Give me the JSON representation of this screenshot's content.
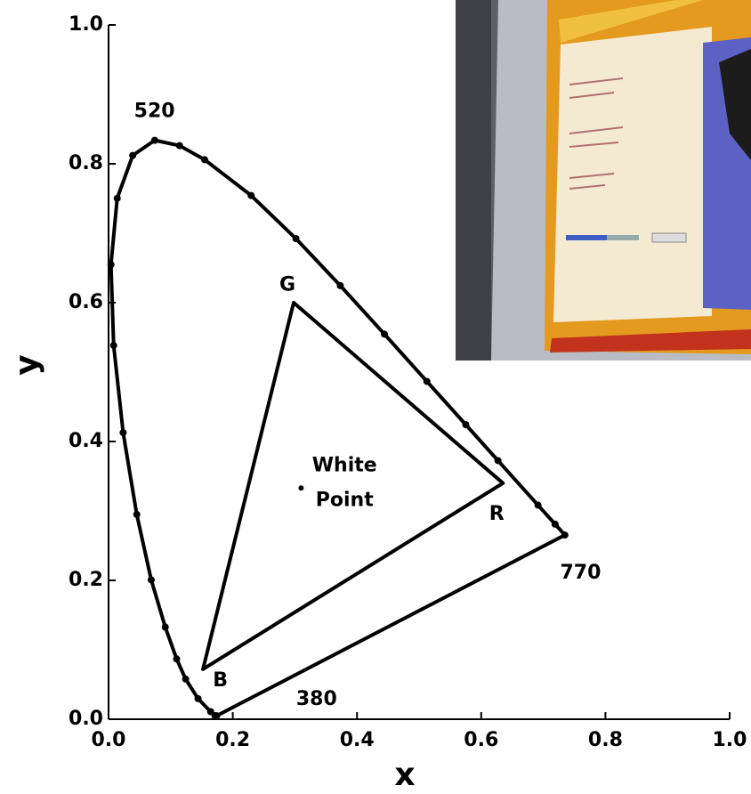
{
  "chart_data": {
    "type": "line",
    "xlabel": "x",
    "ylabel": "y",
    "xlim": [
      0,
      1.0
    ],
    "ylim": [
      0,
      1.0
    ],
    "xticks": [
      {
        "value": 0,
        "label": "0.0"
      },
      {
        "value": 0.2,
        "label": "0.2"
      },
      {
        "value": 0.4,
        "label": "0.4"
      },
      {
        "value": 0.6,
        "label": "0.6"
      },
      {
        "value": 0.8,
        "label": "0.8"
      },
      {
        "value": 1.0,
        "label": "1.0"
      }
    ],
    "yticks": [
      {
        "value": 0,
        "label": "0.0"
      },
      {
        "value": 0.2,
        "label": "0.2"
      },
      {
        "value": 0.4,
        "label": "0.4"
      },
      {
        "value": 0.6,
        "label": "0.6"
      },
      {
        "value": 0.8,
        "label": "0.8"
      },
      {
        "value": 1.0,
        "label": "1.0"
      }
    ],
    "color": "#000000",
    "locus": {
      "x": [
        0.1741,
        0.1714,
        0.1644,
        0.144,
        0.1241,
        0.1096,
        0.0913,
        0.0687,
        0.0454,
        0.0235,
        0.0082,
        0.0039,
        0.0139,
        0.0389,
        0.0743,
        0.1142,
        0.1547,
        0.2296,
        0.3016,
        0.3731,
        0.4441,
        0.5125,
        0.5752,
        0.627,
        0.6915,
        0.719,
        0.7347
      ],
      "y": [
        0.005,
        0.0051,
        0.0109,
        0.0297,
        0.0578,
        0.0868,
        0.1327,
        0.2007,
        0.295,
        0.4127,
        0.5384,
        0.6548,
        0.7502,
        0.812,
        0.8338,
        0.8262,
        0.8059,
        0.7543,
        0.6923,
        0.6245,
        0.5547,
        0.4866,
        0.4242,
        0.3725,
        0.3083,
        0.2809,
        0.2653
      ]
    },
    "gamut": {
      "x": [
        0.635,
        0.298,
        0.152
      ],
      "y": [
        0.34,
        0.6,
        0.072
      ]
    },
    "white_point": {
      "x": 0.31,
      "y": 0.333
    },
    "annotations": [
      {
        "text": "520",
        "x": 0.074,
        "y": 0.875
      },
      {
        "text": "770",
        "x": 0.76,
        "y": 0.21
      },
      {
        "text": "380",
        "x": 0.335,
        "y": 0.028
      },
      {
        "text": "G",
        "x": 0.288,
        "y": 0.625
      },
      {
        "text": "R",
        "x": 0.625,
        "y": 0.295
      },
      {
        "text": "B",
        "x": 0.18,
        "y": 0.055
      },
      {
        "text": "White",
        "x": 0.38,
        "y": 0.365
      },
      {
        "text": "Point",
        "x": 0.38,
        "y": 0.315
      }
    ]
  }
}
